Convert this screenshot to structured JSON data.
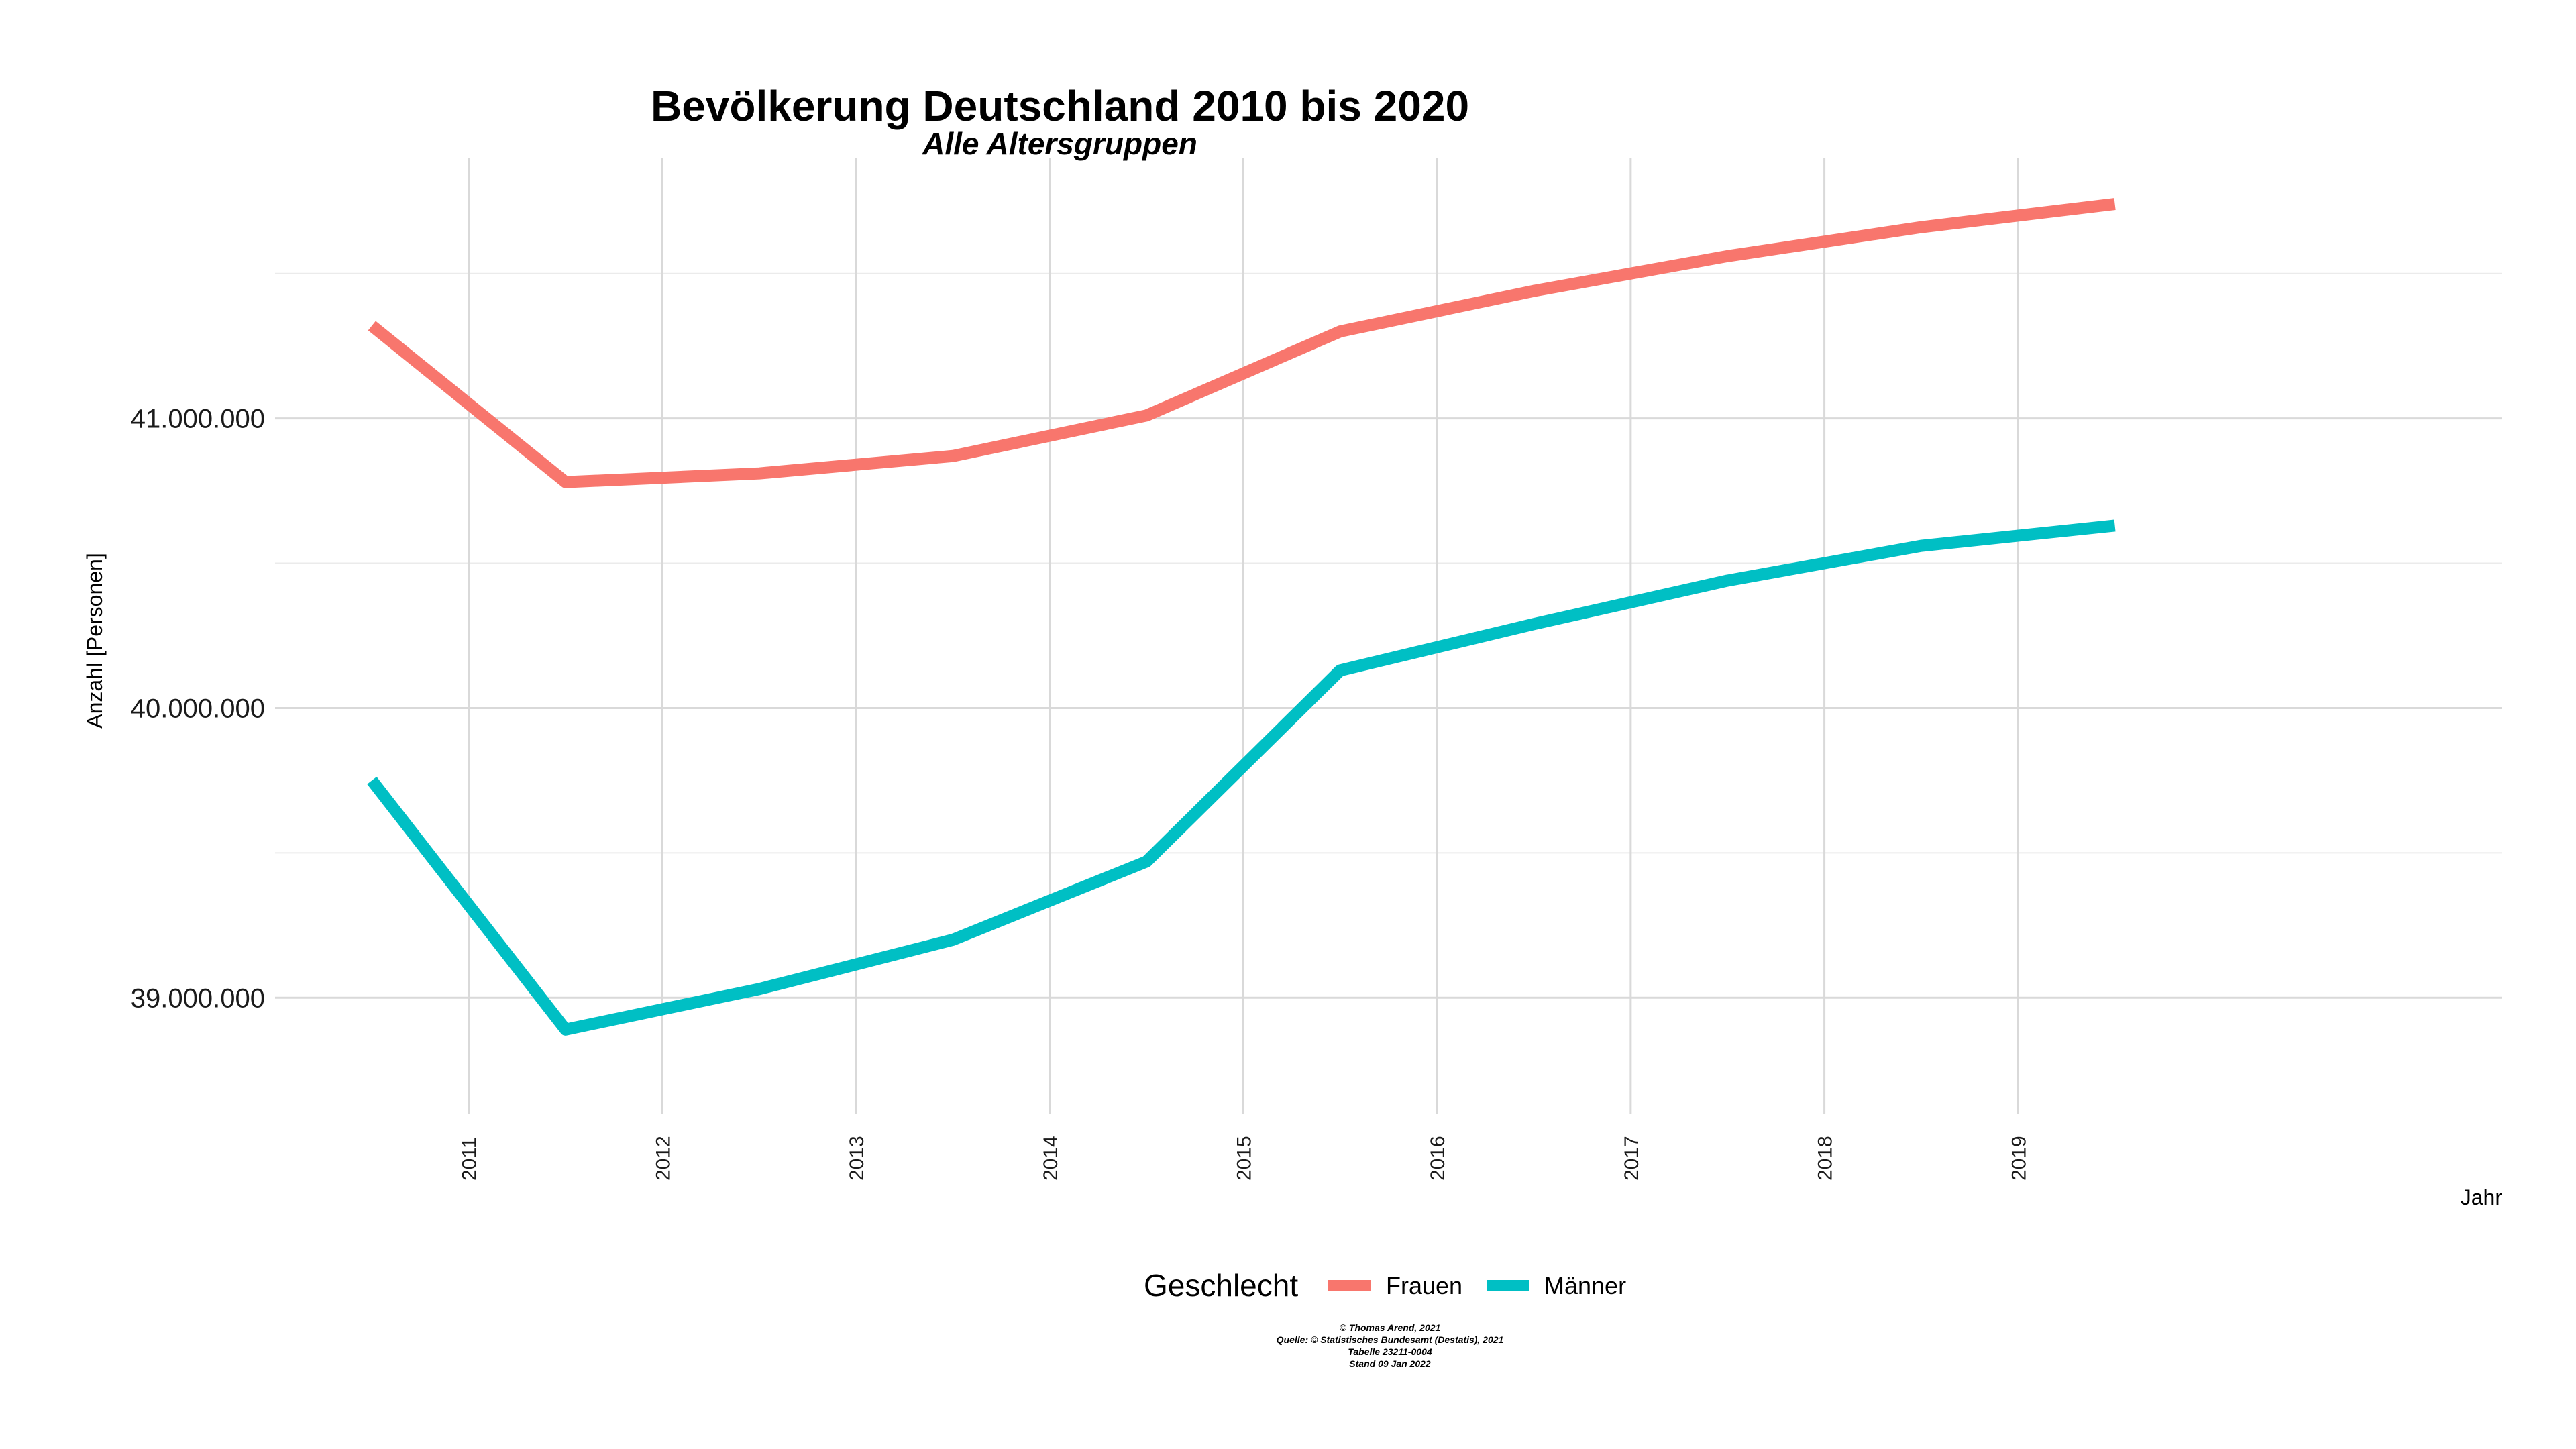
{
  "chart_data": {
    "type": "line",
    "title": "Bevölkerung Deutschland 2010 bis 2020",
    "subtitle": "Alle Altersgruppen",
    "xlabel": "Jahr",
    "ylabel": "Anzahl [Personen]",
    "x": [
      2010.5,
      2011.5,
      2012.5,
      2013.5,
      2014.5,
      2015.5,
      2016.5,
      2017.5,
      2018.5,
      2019.5
    ],
    "x_ticks": [
      "2011",
      "2012",
      "2013",
      "2014",
      "2015",
      "2016",
      "2017",
      "2018",
      "2019"
    ],
    "y_ticks": [
      "39.000.000",
      "40.000.000",
      "41.000.000"
    ],
    "y_tick_values": [
      39000000,
      40000000,
      41000000
    ],
    "xlim": [
      2010,
      2021.5
    ],
    "ylim": [
      38600000,
      41900000
    ],
    "grid": true,
    "legend_position": "bottom",
    "legend_title": "Geschlecht",
    "series": [
      {
        "name": "Frauen",
        "color": "#F8766D",
        "values": [
          41320000,
          40780000,
          40810000,
          40870000,
          41010000,
          41300000,
          41440000,
          41560000,
          41660000,
          41740000
        ]
      },
      {
        "name": "Männer",
        "color": "#00BFC4",
        "values": [
          39750000,
          38890000,
          39030000,
          39200000,
          39470000,
          40130000,
          40290000,
          40440000,
          40560000,
          40630000
        ]
      }
    ],
    "caption": [
      "© Thomas Arend, 2021",
      "Quelle: © Statistisches Bundesamt (Destatis), 2021",
      "Tabelle 23211-0004",
      "Stand 09 Jan 2022"
    ]
  }
}
